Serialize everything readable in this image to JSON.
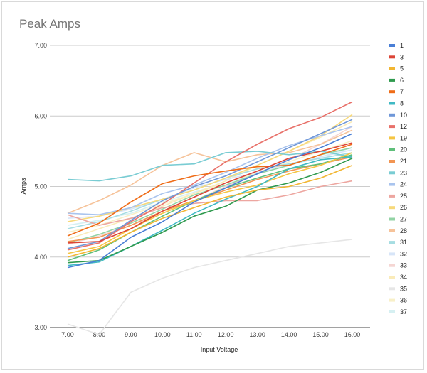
{
  "chart_data": {
    "type": "line",
    "title": "Peak Amps",
    "xlabel": "Input Voltage",
    "ylabel": "Amps",
    "x": [
      "7.00",
      "8.00",
      "9.00",
      "10.00",
      "11.00",
      "12.00",
      "13.00",
      "14.00",
      "15.00",
      "16.00"
    ],
    "y_ticks": [
      "3.00",
      "4.00",
      "5.00",
      "6.00",
      "7.00"
    ],
    "ylim": [
      3,
      7
    ],
    "grid": true,
    "legend_position": "right",
    "series": [
      {
        "name": "1",
        "color": "#4a7fd6",
        "values": [
          3.85,
          3.95,
          4.28,
          4.5,
          4.78,
          4.98,
          5.18,
          5.38,
          5.55,
          5.75
        ]
      },
      {
        "name": "3",
        "color": "#dc4437",
        "values": [
          4.2,
          4.22,
          4.4,
          4.65,
          4.85,
          5.05,
          5.22,
          5.4,
          5.5,
          5.62
        ]
      },
      {
        "name": "5",
        "color": "#f2b632",
        "values": [
          4.0,
          4.12,
          4.35,
          4.55,
          4.7,
          4.85,
          4.95,
          5.0,
          5.12,
          5.3
        ]
      },
      {
        "name": "6",
        "color": "#2f9a4e",
        "values": [
          3.92,
          3.95,
          4.15,
          4.35,
          4.58,
          4.72,
          4.95,
          5.05,
          5.2,
          5.4
        ]
      },
      {
        "name": "7",
        "color": "#ef6c17",
        "values": [
          4.3,
          4.48,
          4.78,
          5.04,
          5.15,
          5.22,
          5.28,
          5.3,
          5.45,
          5.6
        ]
      },
      {
        "name": "8",
        "color": "#3fb9c4",
        "values": [
          3.88,
          3.93,
          4.15,
          4.38,
          4.62,
          4.82,
          5.0,
          5.25,
          5.38,
          5.42
        ]
      },
      {
        "name": "10",
        "color": "#6f97d8",
        "values": [
          4.12,
          4.22,
          4.52,
          4.8,
          5.0,
          5.15,
          5.35,
          5.55,
          5.75,
          5.95
        ]
      },
      {
        "name": "12",
        "color": "#e8716a",
        "values": [
          4.1,
          4.2,
          4.5,
          4.75,
          5.05,
          5.35,
          5.6,
          5.82,
          5.98,
          6.2
        ]
      },
      {
        "name": "19",
        "color": "#f5c542",
        "values": [
          4.05,
          4.15,
          4.4,
          4.62,
          4.8,
          4.92,
          5.02,
          5.18,
          5.3,
          5.48
        ]
      },
      {
        "name": "20",
        "color": "#5fbf7a",
        "values": [
          3.95,
          4.1,
          4.35,
          4.58,
          4.8,
          4.98,
          5.12,
          5.25,
          5.32,
          5.45
        ]
      },
      {
        "name": "21",
        "color": "#f29552",
        "values": [
          4.22,
          4.28,
          4.45,
          4.65,
          4.8,
          4.95,
          5.1,
          5.22,
          5.32,
          5.42
        ]
      },
      {
        "name": "23",
        "color": "#79ccd3",
        "values": [
          5.1,
          5.08,
          5.15,
          5.3,
          5.32,
          5.48,
          5.5,
          5.45,
          5.5,
          5.42
        ]
      },
      {
        "name": "24",
        "color": "#a9c4ee",
        "values": [
          4.62,
          4.6,
          4.7,
          4.9,
          5.02,
          5.2,
          5.4,
          5.58,
          5.72,
          5.85
        ]
      },
      {
        "name": "25",
        "color": "#eda6a0",
        "values": [
          4.6,
          4.45,
          4.55,
          4.7,
          4.76,
          4.8,
          4.8,
          4.88,
          5.0,
          5.08
        ]
      },
      {
        "name": "26",
        "color": "#f7d97a",
        "values": [
          4.5,
          4.58,
          4.7,
          4.82,
          4.95,
          5.12,
          5.3,
          5.5,
          5.72,
          6.02
        ]
      },
      {
        "name": "27",
        "color": "#92d3a4",
        "values": [
          4.2,
          4.32,
          4.48,
          4.68,
          4.88,
          5.02,
          5.18,
          5.3,
          5.45,
          5.55
        ]
      },
      {
        "name": "28",
        "color": "#f6c39a",
        "values": [
          4.62,
          4.8,
          5.02,
          5.3,
          5.48,
          5.35,
          5.45,
          5.48,
          5.6,
          5.8
        ]
      },
      {
        "name": "31",
        "color": "#a6dde2",
        "values": [
          4.4,
          4.5,
          4.65,
          4.82,
          4.95,
          5.12,
          5.25,
          5.32,
          5.4,
          5.48
        ]
      },
      {
        "name": "32",
        "color": "#d7e5f8",
        "values": [
          4.55,
          4.58,
          4.68,
          4.82,
          4.98,
          5.1,
          5.2,
          5.32,
          5.42,
          5.52
        ]
      },
      {
        "name": "33",
        "color": "#f5d6d3",
        "values": [
          4.18,
          4.3,
          4.45,
          4.62,
          4.8,
          5.0,
          5.18,
          5.38,
          5.6,
          5.85
        ]
      },
      {
        "name": "34",
        "color": "#faebb9",
        "values": [
          4.25,
          4.4,
          4.55,
          4.72,
          4.9,
          5.08,
          5.3,
          5.5,
          5.7,
          5.92
        ]
      },
      {
        "name": "35",
        "color": "#e6e6e6",
        "values": [
          3.05,
          2.9,
          3.5,
          3.7,
          3.85,
          3.95,
          4.05,
          4.15,
          4.2,
          4.25
        ]
      },
      {
        "name": "36",
        "color": "#f8f0c8",
        "values": [
          4.35,
          4.45,
          4.6,
          4.75,
          4.9,
          5.05,
          5.2,
          5.35,
          5.5,
          5.65
        ]
      },
      {
        "name": "37",
        "color": "#d6f0f2",
        "values": [
          4.45,
          4.52,
          4.62,
          4.78,
          4.92,
          5.05,
          5.18,
          5.3,
          5.42,
          5.55
        ]
      }
    ]
  }
}
